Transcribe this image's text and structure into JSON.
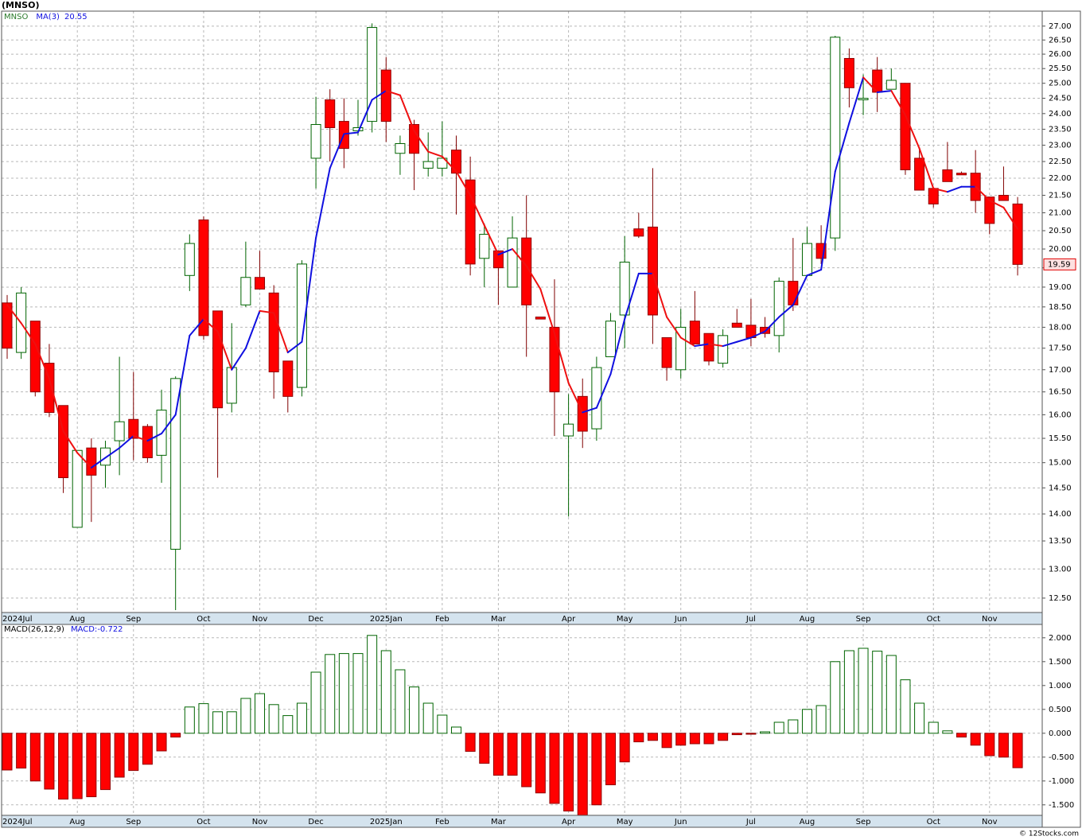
{
  "title": "(MNSO)",
  "footer": "© 12Stocks.com",
  "chart_data": [
    {
      "type": "candlestick",
      "ticker": "MNSO",
      "log_scale": true,
      "grid": true,
      "categories": [
        "2024Jul",
        null,
        null,
        null,
        null,
        "Aug",
        null,
        null,
        null,
        "Sep",
        null,
        null,
        null,
        null,
        "Oct",
        null,
        null,
        null,
        "Nov",
        null,
        null,
        null,
        "Dec",
        null,
        null,
        null,
        null,
        "2025Jan",
        null,
        null,
        null,
        "Feb",
        null,
        null,
        null,
        "Mar",
        null,
        null,
        null,
        null,
        "Apr",
        null,
        null,
        null,
        "May",
        null,
        null,
        null,
        "Jun",
        null,
        null,
        null,
        null,
        "Jul",
        null,
        null,
        null,
        "Aug",
        null,
        null,
        null,
        "Sep",
        null,
        null,
        null,
        null,
        "Oct",
        null,
        null,
        null,
        "Nov",
        null,
        null
      ],
      "open": [
        18.6,
        17.4,
        18.15,
        17.15,
        16.2,
        13.75,
        15.3,
        14.95,
        15.45,
        15.9,
        15.75,
        15.15,
        13.35,
        19.3,
        20.8,
        18.4,
        16.25,
        18.55,
        19.25,
        18.85,
        17.2,
        16.6,
        22.6,
        24.45,
        23.75,
        23.45,
        23.75,
        25.45,
        22.75,
        23.65,
        22.3,
        22.3,
        22.85,
        21.95,
        19.75,
        19.95,
        19.0,
        20.3,
        18.25,
        18.0,
        15.55,
        16.4,
        15.7,
        17.3,
        18.3,
        20.55,
        20.6,
        17.75,
        17.0,
        18.15,
        17.85,
        17.15,
        18.1,
        18.05,
        18.0,
        17.8,
        19.15,
        19.3,
        20.15,
        20.3,
        25.85,
        24.45,
        25.45,
        24.8,
        25.0,
        22.6,
        21.7,
        22.25,
        22.15,
        22.15,
        21.45,
        21.5,
        21.25
      ],
      "high": [
        18.8,
        19.0,
        18.15,
        17.6,
        16.2,
        15.25,
        15.5,
        15.45,
        17.3,
        16.95,
        15.8,
        16.55,
        16.85,
        20.4,
        20.9,
        18.4,
        18.1,
        20.2,
        19.95,
        19.05,
        17.2,
        19.7,
        24.55,
        24.8,
        24.5,
        24.45,
        27.1,
        25.9,
        23.3,
        23.8,
        23.4,
        23.75,
        23.3,
        22.65,
        20.7,
        19.95,
        20.9,
        21.5,
        18.25,
        19.2,
        16.45,
        16.8,
        17.3,
        18.35,
        20.35,
        21.0,
        22.3,
        17.75,
        18.45,
        18.9,
        17.85,
        17.95,
        18.45,
        18.7,
        18.25,
        19.25,
        20.3,
        20.6,
        20.65,
        26.65,
        26.2,
        25.3,
        25.9,
        25.5,
        25.0,
        22.95,
        21.7,
        23.1,
        22.2,
        22.85,
        21.45,
        22.35,
        21.45
      ],
      "low": [
        17.25,
        17.25,
        16.4,
        15.95,
        14.4,
        13.75,
        13.85,
        14.5,
        14.75,
        15.05,
        15.0,
        14.6,
        12.3,
        18.9,
        17.7,
        14.7,
        16.05,
        18.5,
        18.95,
        16.35,
        16.05,
        16.4,
        21.7,
        22.5,
        22.3,
        23.3,
        23.4,
        23.1,
        22.1,
        21.65,
        22.05,
        22.05,
        20.95,
        19.3,
        19.0,
        18.55,
        19.0,
        17.3,
        18.2,
        15.55,
        13.95,
        15.3,
        15.45,
        17.3,
        17.5,
        20.3,
        17.6,
        16.75,
        16.8,
        17.6,
        17.1,
        17.05,
        18.0,
        17.55,
        17.75,
        17.4,
        18.4,
        19.3,
        19.6,
        19.95,
        24.2,
        23.95,
        24.05,
        24.8,
        22.1,
        21.65,
        21.15,
        21.9,
        22.1,
        21.0,
        20.4,
        21.35,
        19.3
      ],
      "close": [
        17.5,
        18.85,
        16.5,
        16.05,
        14.7,
        15.25,
        14.75,
        15.3,
        15.85,
        15.5,
        15.1,
        16.1,
        16.8,
        20.15,
        17.8,
        16.15,
        17.05,
        19.25,
        18.95,
        16.95,
        16.4,
        19.6,
        23.65,
        23.55,
        22.9,
        23.55,
        26.95,
        23.75,
        23.05,
        22.75,
        22.5,
        22.6,
        22.15,
        19.6,
        20.4,
        19.5,
        20.3,
        18.55,
        18.2,
        16.5,
        15.8,
        15.65,
        17.05,
        18.15,
        19.65,
        20.35,
        18.3,
        17.05,
        18.0,
        17.6,
        17.2,
        17.8,
        18.0,
        17.75,
        17.85,
        19.15,
        18.55,
        20.15,
        19.75,
        26.6,
        24.85,
        24.5,
        24.7,
        25.1,
        22.25,
        21.65,
        21.25,
        21.9,
        22.1,
        21.35,
        20.7,
        21.35,
        19.59
      ],
      "up_color": "#006400",
      "down_color": "#ff0000",
      "ma": {
        "name": "MA(3)",
        "rising_color": "#1010e0",
        "falling_color": "#ee1010",
        "values": [
          18.55,
          18.1,
          17.6,
          16.8,
          15.65,
          15.2,
          14.9,
          15.1,
          15.3,
          15.55,
          15.45,
          15.6,
          16.0,
          17.8,
          18.2,
          17.9,
          17.0,
          17.5,
          18.4,
          18.35,
          17.4,
          17.65,
          20.3,
          22.3,
          23.35,
          23.4,
          24.45,
          24.75,
          24.6,
          23.45,
          22.8,
          22.65,
          22.2,
          21.5,
          20.65,
          19.85,
          20.0,
          19.55,
          18.95,
          17.85,
          16.7,
          16.05,
          16.15,
          16.9,
          18.2,
          19.35,
          19.35,
          18.25,
          17.75,
          17.55,
          17.6,
          17.55,
          17.65,
          17.75,
          17.9,
          18.25,
          18.55,
          19.3,
          19.45,
          22.2,
          23.7,
          25.2,
          24.7,
          24.75,
          23.95,
          22.9,
          21.7,
          21.6,
          21.75,
          21.75,
          21.35,
          21.15,
          20.55
        ]
      },
      "ylim": [
        12.26,
        27.55
      ],
      "yticks": [
        {
          "value": 12.5,
          "label": "12.50"
        },
        {
          "value": 13,
          "label": "13.00"
        },
        {
          "value": 13.5,
          "label": "13.50"
        },
        {
          "value": 14,
          "label": "14.00"
        },
        {
          "value": 14.5,
          "label": "14.50"
        },
        {
          "value": 15,
          "label": "15.00"
        },
        {
          "value": 15.5,
          "label": "15.50"
        },
        {
          "value": 16,
          "label": "16.00"
        },
        {
          "value": 16.5,
          "label": "16.50"
        },
        {
          "value": 17,
          "label": "17.00"
        },
        {
          "value": 17.5,
          "label": "17.50"
        },
        {
          "value": 18,
          "label": "18.00"
        },
        {
          "value": 18.5,
          "label": "18.50"
        },
        {
          "value": 19,
          "label": "19.00"
        },
        {
          "value": 19.5,
          "label": "19.50"
        },
        {
          "value": 20,
          "label": "20.00"
        },
        {
          "value": 20.5,
          "label": "20.50"
        },
        {
          "value": 21,
          "label": "21.00"
        },
        {
          "value": 21.5,
          "label": "21.50"
        },
        {
          "value": 22,
          "label": "22.00"
        },
        {
          "value": 22.5,
          "label": "22.50"
        },
        {
          "value": 23,
          "label": "23.00"
        },
        {
          "value": 23.5,
          "label": "23.50"
        },
        {
          "value": 24,
          "label": "24.00"
        },
        {
          "value": 24.5,
          "label": "24.50"
        },
        {
          "value": 25,
          "label": "25.00"
        },
        {
          "value": 25.5,
          "label": "25.50"
        },
        {
          "value": 26,
          "label": "26.00"
        },
        {
          "value": 26.5,
          "label": "26.50"
        },
        {
          "value": 27,
          "label": "27.00"
        }
      ]
    },
    {
      "type": "bar",
      "name": "MACD(26,12,9)",
      "value_name": "MACD:",
      "grid": true,
      "categories": [
        "2024Jul",
        null,
        null,
        null,
        null,
        "Aug",
        null,
        null,
        null,
        "Sep",
        null,
        null,
        null,
        null,
        "Oct",
        null,
        null,
        null,
        "Nov",
        null,
        null,
        null,
        "Dec",
        null,
        null,
        null,
        null,
        "2025Jan",
        null,
        null,
        null,
        "Feb",
        null,
        null,
        null,
        "Mar",
        null,
        null,
        null,
        null,
        "Apr",
        null,
        null,
        null,
        "May",
        null,
        null,
        null,
        "Jun",
        null,
        null,
        null,
        null,
        "Jul",
        null,
        null,
        null,
        "Aug",
        null,
        null,
        null,
        "Sep",
        null,
        null,
        null,
        null,
        "Oct",
        null,
        null,
        null,
        "Nov",
        null,
        null
      ],
      "values": [
        -0.77,
        -0.73,
        -1.0,
        -1.17,
        -1.38,
        -1.37,
        -1.33,
        -1.18,
        -0.92,
        -0.78,
        -0.65,
        -0.37,
        -0.08,
        0.55,
        0.62,
        0.45,
        0.45,
        0.73,
        0.83,
        0.6,
        0.37,
        0.63,
        1.28,
        1.65,
        1.67,
        1.67,
        2.05,
        1.73,
        1.33,
        0.97,
        0.63,
        0.38,
        0.13,
        -0.38,
        -0.63,
        -0.88,
        -0.88,
        -1.12,
        -1.25,
        -1.47,
        -1.63,
        -1.72,
        -1.5,
        -1.08,
        -0.6,
        -0.18,
        -0.15,
        -0.3,
        -0.25,
        -0.22,
        -0.22,
        -0.15,
        -0.03,
        -0.02,
        0.03,
        0.23,
        0.28,
        0.5,
        0.58,
        1.5,
        1.73,
        1.78,
        1.72,
        1.63,
        1.12,
        0.63,
        0.23,
        0.05,
        -0.08,
        -0.25,
        -0.47,
        -0.5,
        -0.722
      ],
      "up_color": "#006400",
      "down_color": "#ff0000",
      "ylim": [
        -1.72,
        2.28
      ],
      "yticks": [
        {
          "value": -1.5,
          "label": "-1.500"
        },
        {
          "value": -1,
          "label": "-1.000"
        },
        {
          "value": -0.5,
          "label": "-0.500"
        },
        {
          "value": 0,
          "label": "0.000"
        },
        {
          "value": 0.5,
          "label": "0.500"
        },
        {
          "value": 1,
          "label": "1.000"
        },
        {
          "value": 1.5,
          "label": "1.500"
        },
        {
          "value": 2,
          "label": "2.000"
        }
      ]
    }
  ]
}
